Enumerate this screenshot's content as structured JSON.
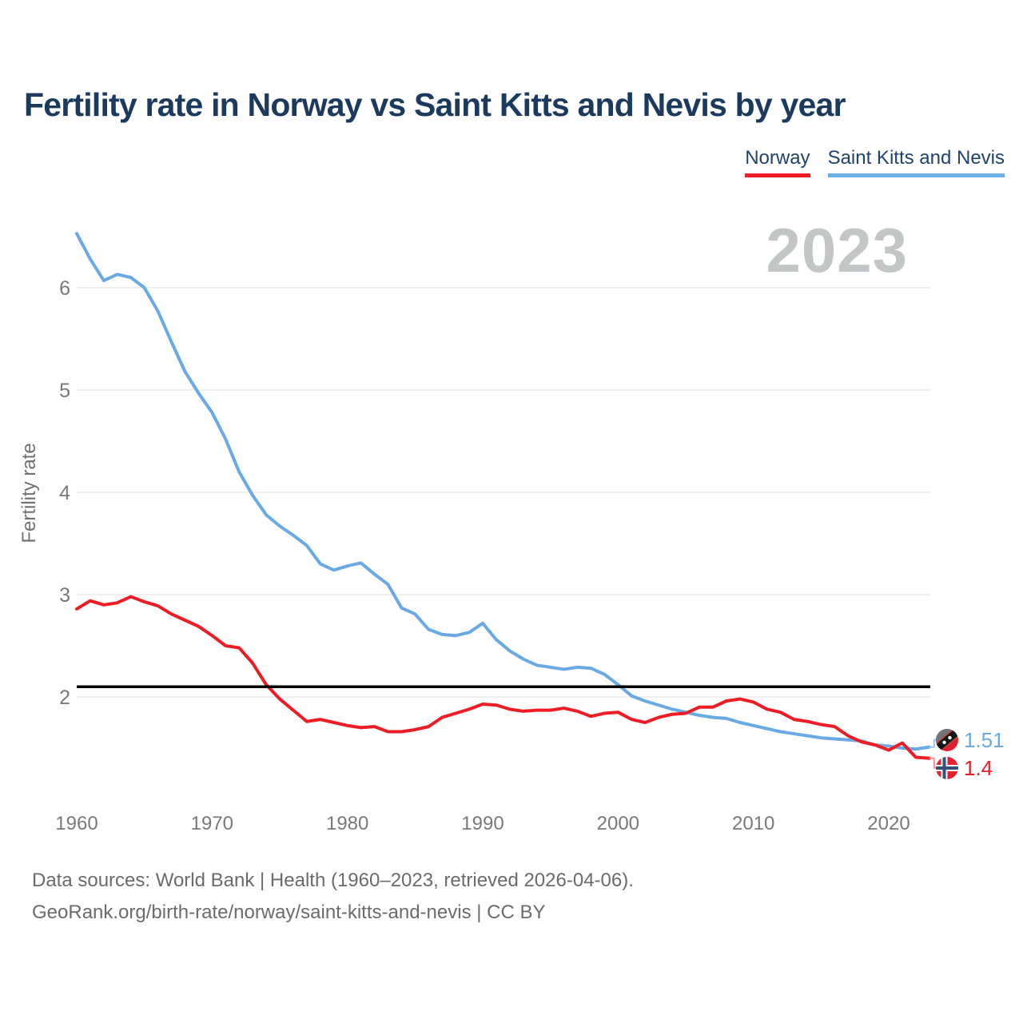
{
  "title": "Fertility rate in Norway vs Saint Kitts and Nevis by year",
  "watermark_year": "2023",
  "legend": {
    "items": [
      {
        "label": "Norway",
        "color": "#ee1c25"
      },
      {
        "label": "Saint Kitts and Nevis",
        "color": "#6fb0e8"
      }
    ]
  },
  "footer": {
    "line1": "Data sources: World Bank | Health (1960–2023, retrieved 2026-04-06).",
    "line2": "GeoRank.org/birth-rate/norway/saint-kitts-and-nevis | CC BY"
  },
  "chart_data": {
    "type": "line",
    "title": "Fertility rate in Norway vs Saint Kitts and Nevis by year",
    "xlabel": "",
    "ylabel": "Fertility rate",
    "x_start": 1960,
    "x_end": 2023,
    "x_step": 1,
    "x_ticks": [
      1960,
      1970,
      1980,
      1990,
      2000,
      2010,
      2020
    ],
    "y_ticks": [
      2,
      3,
      4,
      5,
      6
    ],
    "xlim": [
      1960,
      2023
    ],
    "ylim": [
      1.15,
      6.75
    ],
    "grid": true,
    "legend_position": "top-right",
    "reference_line": {
      "value": 2.1,
      "color": "#000000"
    },
    "series": [
      {
        "name": "Saint Kitts and Nevis",
        "color": "#69aae4",
        "connector_color": "#9cc4ec",
        "end_label": "1.51",
        "flag_icon": "saint-kitts-and-nevis-flag-icon",
        "values": [
          6.53,
          6.28,
          6.07,
          6.13,
          6.1,
          6.0,
          5.77,
          5.47,
          5.18,
          4.97,
          4.78,
          4.52,
          4.2,
          3.97,
          3.78,
          3.67,
          3.58,
          3.48,
          3.3,
          3.24,
          3.28,
          3.31,
          3.2,
          3.1,
          2.87,
          2.81,
          2.66,
          2.61,
          2.6,
          2.63,
          2.72,
          2.56,
          2.45,
          2.37,
          2.31,
          2.29,
          2.27,
          2.29,
          2.28,
          2.22,
          2.12,
          2.01,
          1.96,
          1.92,
          1.88,
          1.85,
          1.82,
          1.8,
          1.79,
          1.75,
          1.72,
          1.69,
          1.66,
          1.64,
          1.62,
          1.6,
          1.59,
          1.58,
          1.57,
          1.53,
          1.52,
          1.5,
          1.49,
          1.51
        ]
      },
      {
        "name": "Norway",
        "color": "#ee1c25",
        "connector_color": "#f58f94",
        "end_label": "1.4",
        "flag_icon": "norway-flag-icon",
        "values": [
          2.86,
          2.94,
          2.9,
          2.92,
          2.98,
          2.93,
          2.89,
          2.81,
          2.75,
          2.69,
          2.6,
          2.5,
          2.48,
          2.33,
          2.12,
          1.98,
          1.87,
          1.76,
          1.78,
          1.75,
          1.72,
          1.7,
          1.71,
          1.66,
          1.66,
          1.68,
          1.71,
          1.8,
          1.84,
          1.88,
          1.93,
          1.92,
          1.88,
          1.86,
          1.87,
          1.87,
          1.89,
          1.86,
          1.81,
          1.84,
          1.85,
          1.78,
          1.75,
          1.8,
          1.83,
          1.84,
          1.9,
          1.9,
          1.96,
          1.98,
          1.95,
          1.88,
          1.85,
          1.78,
          1.76,
          1.73,
          1.71,
          1.62,
          1.56,
          1.53,
          1.48,
          1.55,
          1.41,
          1.4
        ]
      }
    ]
  }
}
